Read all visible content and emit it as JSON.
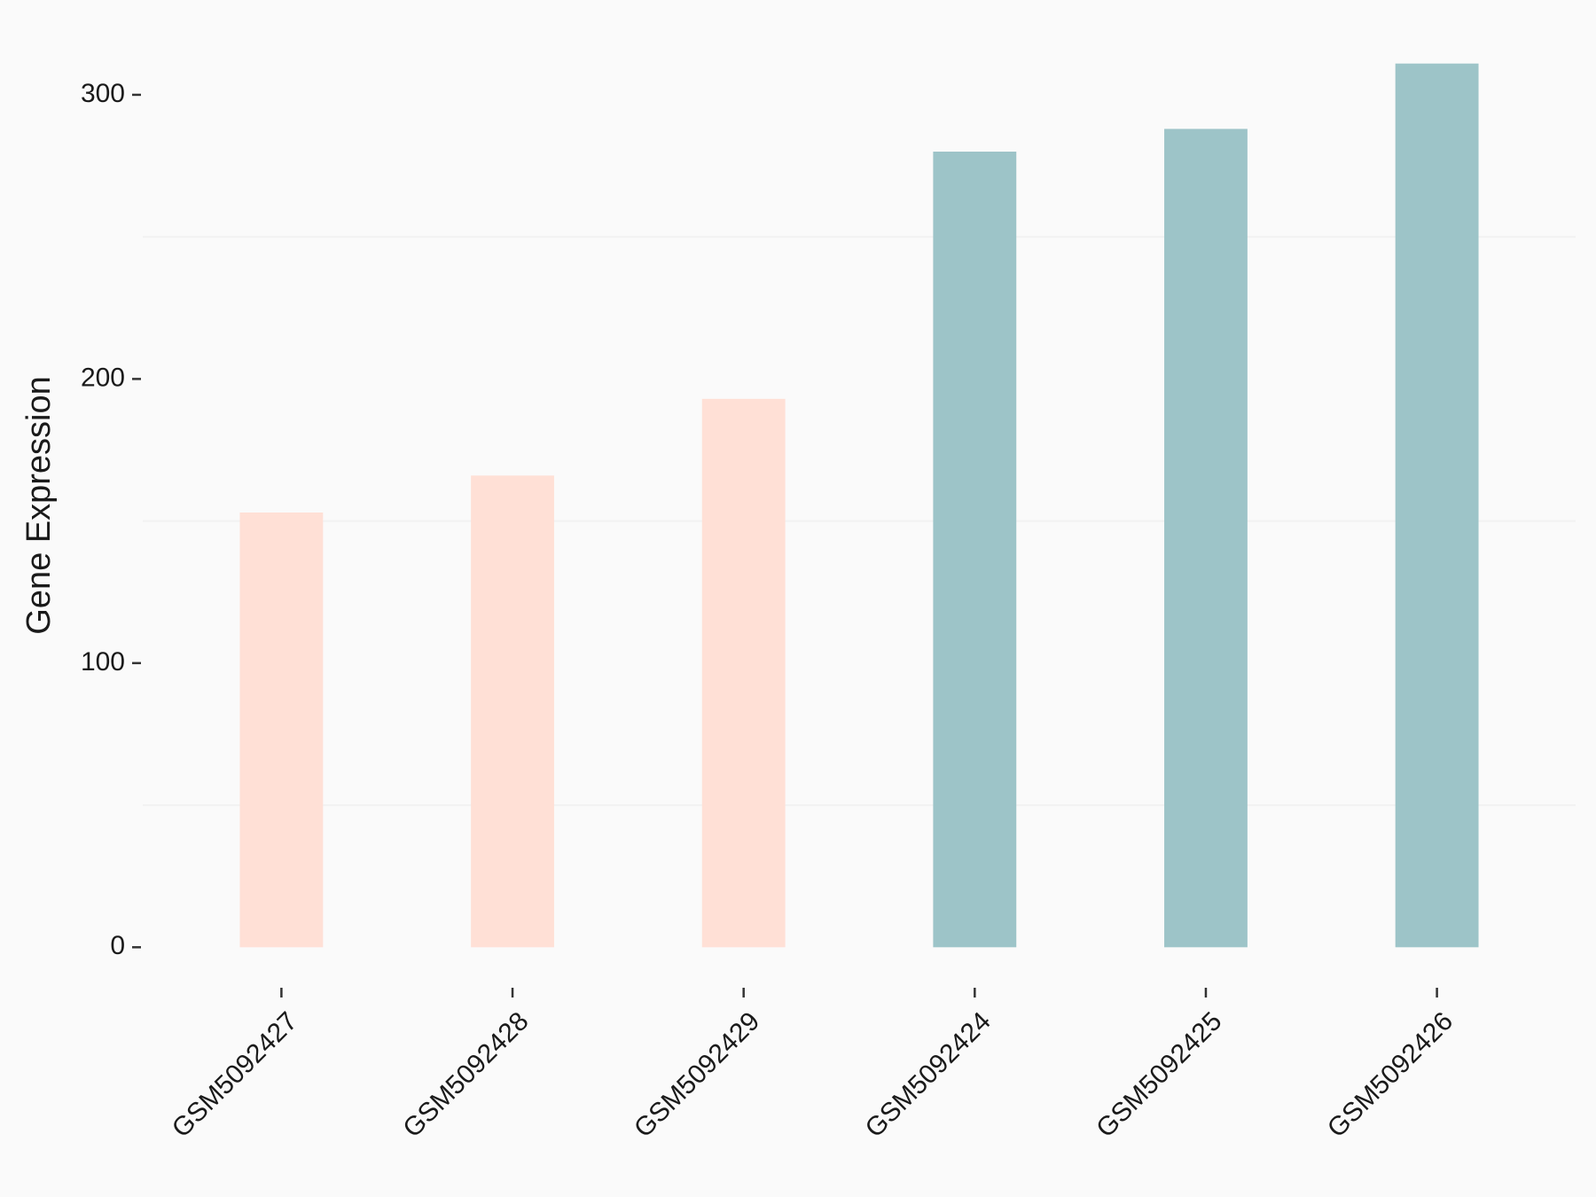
{
  "chart_data": {
    "type": "bar",
    "y_label": "Gene Expression",
    "categories": [
      "GSM5092427",
      "GSM5092428",
      "GSM5092429",
      "GSM5092424",
      "GSM5092425",
      "GSM5092426"
    ],
    "values": [
      153,
      166,
      193,
      280,
      288,
      311
    ],
    "colors": [
      "#ffe0d6",
      "#ffe0d6",
      "#ffe0d6",
      "#9dc4c8",
      "#9dc4c8",
      "#9dc4c8"
    ],
    "ylim": [
      -15.5,
      326.5
    ],
    "yticks": [
      0,
      100,
      200,
      300
    ],
    "minor_grid": [
      50,
      150,
      250
    ]
  }
}
